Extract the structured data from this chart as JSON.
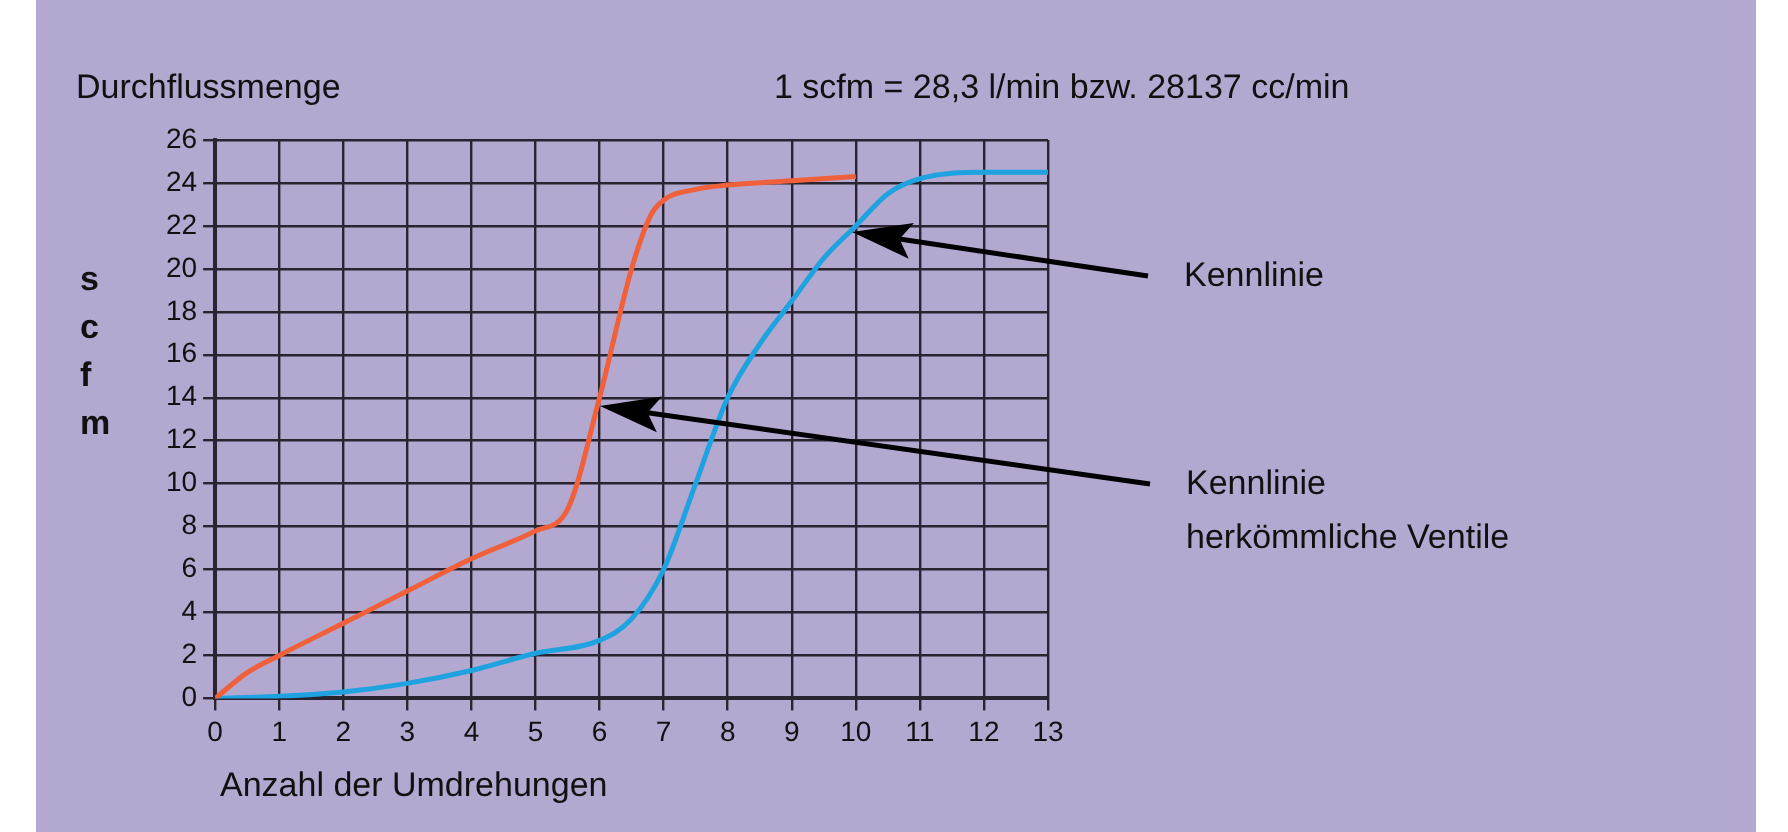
{
  "chart_data": {
    "type": "line",
    "title": "Durchflussmenge",
    "subtitle": "1 scfm = 28,3 l/min bzw.  28137 cc/min",
    "xlabel": "Anzahl der Umdrehungen",
    "ylabel": "scfm",
    "series": [
      {
        "color": "#f0603a",
        "x": [
          0,
          0.5,
          1,
          2,
          3,
          4,
          5,
          5.5,
          6,
          6.5,
          6.8,
          7,
          7.5,
          8,
          9,
          10
        ],
        "values": [
          0,
          1.2,
          2,
          3.5,
          5,
          6.5,
          7.8,
          8.8,
          14,
          20,
          22.5,
          23.2,
          23.7,
          23.9,
          24.1,
          24.3
        ]
      },
      {
        "color": "#1fa3e0",
        "x": [
          0,
          1,
          2,
          3,
          4,
          5,
          6,
          6.5,
          7,
          7.5,
          8,
          8.5,
          9,
          9.5,
          10,
          10.5,
          11,
          12,
          13
        ],
        "values": [
          0,
          0.1,
          0.3,
          0.7,
          1.3,
          2.1,
          2.7,
          3.7,
          6,
          10,
          14,
          16.5,
          18.5,
          20.5,
          22,
          23.5,
          24.2,
          24.5,
          24.5
        ]
      }
    ],
    "annotations": [
      "Kennlinie",
      "Kennlinie herkömmliche Ventile"
    ],
    "xlim": [
      0,
      13
    ],
    "xticks": [
      0,
      1,
      2,
      3,
      4,
      5,
      6,
      7,
      8,
      9,
      10,
      11,
      12,
      13
    ],
    "ylim": [
      0,
      26
    ],
    "yticks": [
      0,
      2,
      4,
      6,
      8,
      10,
      12,
      14,
      16,
      18,
      20,
      22,
      24,
      26
    ],
    "grid": true,
    "marker": "none"
  }
}
